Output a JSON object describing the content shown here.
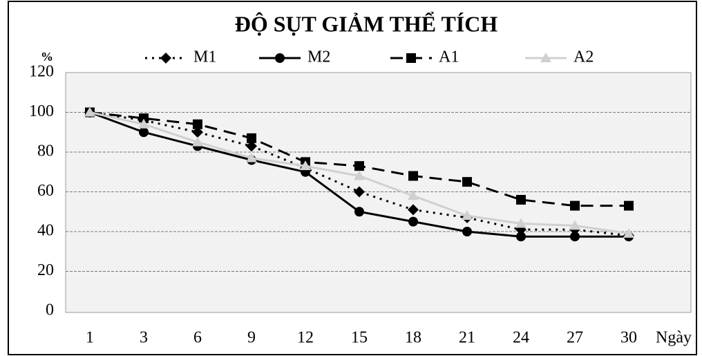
{
  "chart_data": {
    "type": "line",
    "title": "ĐỘ SỤT GIẢM THỂ TÍCH",
    "y_label": "%",
    "x_label": "Ngày",
    "categories": [
      "1",
      "3",
      "6",
      "9",
      "12",
      "15",
      "18",
      "21",
      "24",
      "27",
      "30"
    ],
    "series": [
      {
        "name": "M1",
        "color": "#000000",
        "marker": "diamond",
        "line_style": "dotted",
        "values": [
          100,
          96,
          90,
          83,
          72,
          60,
          51,
          47,
          41,
          41,
          38
        ]
      },
      {
        "name": "M2",
        "color": "#000000",
        "marker": "circle",
        "line_style": "solid",
        "values": [
          100,
          90,
          83,
          76,
          70,
          50,
          45,
          40,
          37.5,
          37.5,
          37.5
        ]
      },
      {
        "name": "A1",
        "color": "#000000",
        "marker": "square",
        "line_style": "dashed",
        "values": [
          100,
          97,
          94,
          87,
          75,
          73,
          68,
          65,
          56,
          53,
          53
        ]
      },
      {
        "name": "A2",
        "color": "#d0d0d0",
        "marker": "triangle",
        "line_style": "solid",
        "values": [
          100,
          94,
          85,
          77,
          73,
          68,
          58,
          48,
          44,
          43,
          39
        ]
      }
    ],
    "ylim": [
      0,
      120
    ],
    "yticks": [
      0,
      20,
      40,
      60,
      80,
      100,
      120
    ],
    "grid": true
  }
}
